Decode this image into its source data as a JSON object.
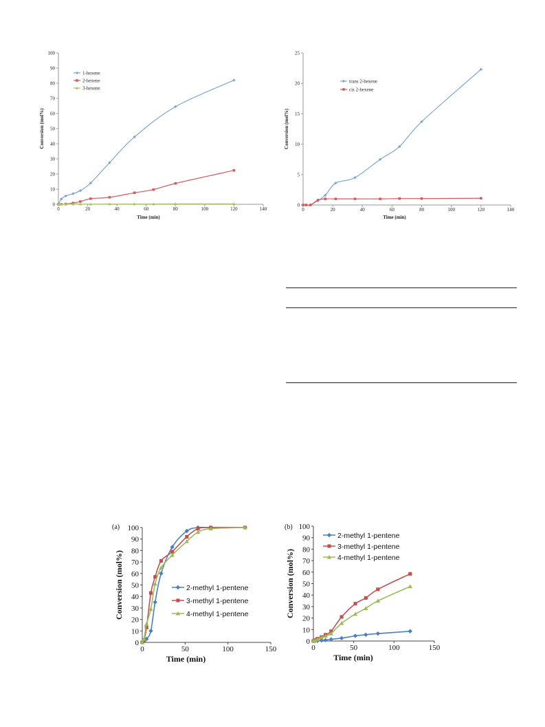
{
  "chart_data": [
    {
      "type": "line",
      "title": "",
      "xlabel": "Time (min)",
      "ylabel": "Conversion (mol%)",
      "xlim": [
        0,
        140
      ],
      "xticks": [
        0,
        20,
        40,
        60,
        80,
        100,
        120,
        140
      ],
      "ylim": [
        0,
        100
      ],
      "yticks": [
        0,
        10,
        20,
        30,
        40,
        50,
        60,
        70,
        80,
        90,
        100
      ],
      "legend_position": "top-left",
      "grid": false,
      "series": [
        {
          "name": "1-hexene",
          "color": "#7ba7d0",
          "marker": "diamond",
          "x": [
            0,
            2,
            5,
            10,
            15,
            22,
            35,
            52,
            80,
            120
          ],
          "y": [
            0,
            3.5,
            5.5,
            7,
            9,
            14,
            27.5,
            44.5,
            64.5,
            82
          ]
        },
        {
          "name": "2-hexene",
          "color": "#d05a5a",
          "marker": "square",
          "x": [
            0,
            2,
            5,
            10,
            15,
            22,
            35,
            52,
            65,
            80,
            120
          ],
          "y": [
            0,
            0,
            0.2,
            0.8,
            1.8,
            3.7,
            4.6,
            7.6,
            9.7,
            13.8,
            22.4
          ]
        },
        {
          "name": "3-hexene",
          "color": "#a9c46a",
          "marker": "triangle",
          "x": [
            0,
            2,
            5,
            10,
            15,
            22,
            35,
            52,
            65,
            80,
            120
          ],
          "y": [
            0,
            0,
            0,
            0.1,
            0.1,
            0.1,
            0.2,
            0.2,
            0.2,
            0.3,
            0.3
          ]
        }
      ]
    },
    {
      "type": "line",
      "title": "",
      "xlabel": "Time (min)",
      "ylabel": "Conversion (mol%)",
      "xlim": [
        0,
        140
      ],
      "xticks": [
        0,
        20,
        40,
        60,
        80,
        100,
        120,
        140
      ],
      "ylim": [
        0,
        25
      ],
      "yticks": [
        0,
        5,
        10,
        15,
        20,
        25
      ],
      "legend_position": "top-left",
      "grid": false,
      "series": [
        {
          "name": "trans 2-hexene",
          "color": "#7ba7d0",
          "marker": "diamond",
          "x": [
            0,
            2,
            5,
            10,
            15,
            22,
            35,
            52,
            65,
            80,
            120
          ],
          "y": [
            0,
            0,
            0,
            0.7,
            1.6,
            3.6,
            4.5,
            7.5,
            9.6,
            13.7,
            22.3
          ]
        },
        {
          "name": "cis 2-hexene",
          "color": "#d05a5a",
          "marker": "square",
          "x": [
            0,
            2,
            5,
            10,
            15,
            22,
            35,
            52,
            65,
            80,
            120
          ],
          "y": [
            0,
            0,
            0,
            0.8,
            1.0,
            1.0,
            1.0,
            1.0,
            1.05,
            1.05,
            1.1
          ]
        }
      ]
    },
    {
      "type": "line",
      "panel_label": "(a)",
      "title": "",
      "xlabel": "Time (min)",
      "ylabel": "Conversion (mol%)",
      "xlim": [
        0,
        150
      ],
      "xticks": [
        0,
        50,
        100,
        150
      ],
      "ylim": [
        0,
        100
      ],
      "yticks": [
        0,
        10,
        20,
        30,
        40,
        50,
        60,
        70,
        80,
        90,
        100
      ],
      "legend_position": "lower-right",
      "grid": false,
      "series": [
        {
          "name": "2-methyl 1-pentene",
          "color": "#4a7fc1",
          "marker": "diamond",
          "x": [
            0,
            2,
            5,
            10,
            15,
            22,
            35,
            52,
            65,
            80,
            120
          ],
          "y": [
            0,
            1,
            3,
            10,
            35,
            60,
            83,
            97,
            100,
            100,
            100
          ]
        },
        {
          "name": "3-methyl 1-pentene",
          "color": "#c0504d",
          "marker": "square",
          "x": [
            0,
            2,
            5,
            10,
            15,
            22,
            35,
            52,
            65,
            80,
            120
          ],
          "y": [
            0,
            2,
            13,
            43,
            57,
            71,
            79,
            92,
            99,
            100,
            100
          ]
        },
        {
          "name": "4-methyl 1-pentene",
          "color": "#9bbb59",
          "marker": "triangle",
          "x": [
            0,
            2,
            5,
            10,
            15,
            22,
            35,
            52,
            65,
            80,
            120
          ],
          "y": [
            0,
            3,
            16,
            29,
            51,
            65,
            76,
            88,
            96,
            99,
            100
          ]
        }
      ]
    },
    {
      "type": "line",
      "panel_label": "(b)",
      "title": "",
      "xlabel": "Time (min)",
      "ylabel": "Conversion (mol%)",
      "xlim": [
        0,
        150
      ],
      "xticks": [
        0,
        50,
        100,
        150
      ],
      "ylim": [
        0,
        100
      ],
      "yticks": [
        0,
        10,
        20,
        30,
        40,
        50,
        60,
        70,
        80,
        90,
        100
      ],
      "legend_position": "top-left",
      "grid": false,
      "series": [
        {
          "name": "2-methyl 1-pentene",
          "color": "#4a7fc1",
          "marker": "diamond",
          "x": [
            0,
            2,
            5,
            10,
            15,
            22,
            35,
            52,
            65,
            80,
            120
          ],
          "y": [
            0,
            0,
            0.2,
            0.5,
            0.8,
            1.5,
            2.5,
            4.5,
            5.5,
            6.5,
            8.5
          ]
        },
        {
          "name": "3-methyl 1-pentene",
          "color": "#c0504d",
          "marker": "square",
          "x": [
            0,
            2,
            5,
            10,
            15,
            22,
            35,
            52,
            65,
            80,
            120
          ],
          "y": [
            0,
            1,
            2,
            3.5,
            5.5,
            8.5,
            21,
            32.5,
            37.5,
            45,
            58.5
          ]
        },
        {
          "name": "4-methyl 1-pentene",
          "color": "#9bbb59",
          "marker": "triangle",
          "x": [
            0,
            2,
            5,
            10,
            15,
            22,
            35,
            52,
            65,
            80,
            120
          ],
          "y": [
            0,
            0.5,
            1.5,
            3,
            4.5,
            6.5,
            15.5,
            23.5,
            28.5,
            35,
            47.5
          ]
        }
      ]
    }
  ]
}
